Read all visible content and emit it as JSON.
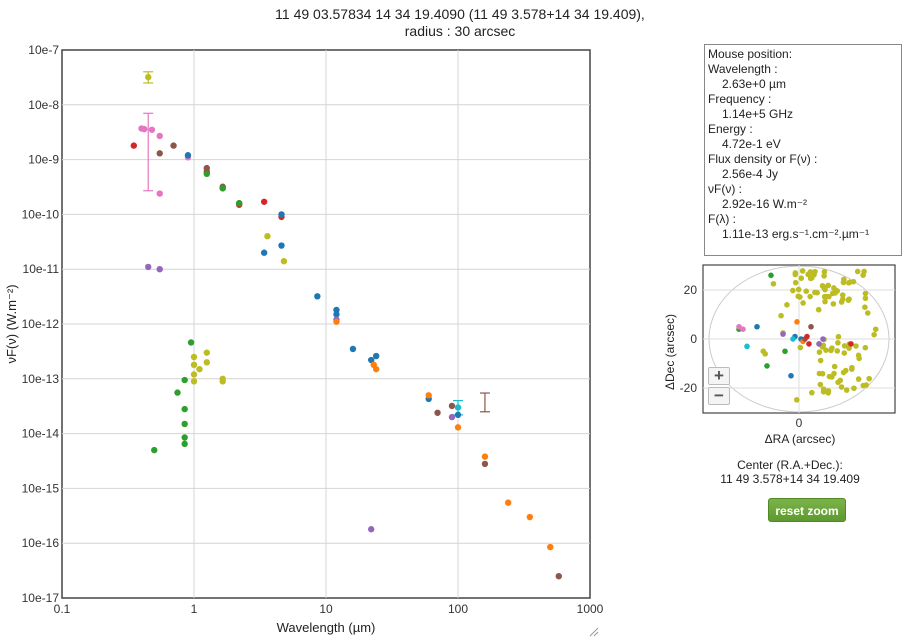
{
  "title": {
    "line1": "11 49 03.57834 14 34 19.4090 (11 49 3.578+14 34 19.409),",
    "line2": "radius : 30 arcsec"
  },
  "chart_data": {
    "type": "scatter",
    "xlabel": "Wavelength (µm)",
    "ylabel": "νF(ν) (W.m⁻²)",
    "xscale": "log",
    "yscale": "log",
    "xlim": [
      0.1,
      1000
    ],
    "ylim": [
      1e-17,
      1e-07
    ],
    "x_ticks": [
      "0.1",
      "1",
      "10",
      "100",
      "1000"
    ],
    "y_ticks": [
      "10e-7",
      "10e-8",
      "10e-9",
      "10e-10",
      "10e-11",
      "10e-12",
      "10e-13",
      "10e-14",
      "10e-15",
      "10e-16",
      "10e-17"
    ],
    "grid": true,
    "series": [
      {
        "color": "#bcbd22",
        "points": [
          [
            0.45,
            3.2e-08
          ],
          [
            3.6,
            4e-11
          ],
          [
            4.8,
            1.4e-11
          ],
          [
            1.0,
            1.2e-13
          ],
          [
            1.0,
            1.8e-13
          ],
          [
            1.0,
            2.5e-13
          ],
          [
            1.0,
            9e-14
          ],
          [
            1.1,
            1.5e-13
          ],
          [
            1.25,
            3e-13
          ],
          [
            1.25,
            2e-13
          ],
          [
            1.65,
            1e-13
          ],
          [
            1.65,
            9e-14
          ]
        ],
        "errors": [
          [
            0.45,
            2.5e-08,
            4e-08
          ]
        ]
      },
      {
        "color": "#e377c2",
        "points": [
          [
            0.4,
            3.7e-09
          ],
          [
            0.42,
            3.6e-09
          ],
          [
            0.48,
            3.5e-09
          ],
          [
            0.55,
            2.4e-10
          ],
          [
            0.55,
            2.7e-09
          ],
          [
            0.9,
            1.1e-09
          ]
        ],
        "errors": [
          [
            0.45,
            2.7e-10,
            7e-09
          ]
        ]
      },
      {
        "color": "#d62728",
        "points": [
          [
            0.35,
            1.8e-09
          ],
          [
            1.25,
            6e-10
          ],
          [
            1.65,
            3e-10
          ],
          [
            2.2,
            1.5e-10
          ],
          [
            3.4,
            1.7e-10
          ],
          [
            4.6,
            9e-11
          ]
        ]
      },
      {
        "color": "#8c564b",
        "points": [
          [
            0.55,
            1.3e-09
          ],
          [
            0.7,
            1.8e-09
          ],
          [
            1.25,
            7e-10
          ],
          [
            1.65,
            3.2e-10
          ],
          [
            2.2,
            1.6e-10
          ],
          [
            70,
            2.4e-14
          ],
          [
            90,
            3.2e-14
          ],
          [
            160,
            2.8e-15
          ],
          [
            580,
            2.5e-17
          ]
        ],
        "errors": [
          [
            160,
            2.5e-14,
            5.5e-14
          ]
        ]
      },
      {
        "color": "#2ca02c",
        "points": [
          [
            1.25,
            5.5e-10
          ],
          [
            1.65,
            3e-10
          ],
          [
            2.2,
            1.6e-10
          ],
          [
            0.5,
            5e-15
          ],
          [
            0.95,
            4.6e-13
          ],
          [
            0.85,
            9.5e-14
          ],
          [
            0.85,
            2.8e-14
          ],
          [
            0.85,
            1.5e-14
          ],
          [
            0.85,
            8.5e-15
          ],
          [
            0.85,
            6.5e-15
          ],
          [
            0.75,
            5.6e-14
          ]
        ]
      },
      {
        "color": "#1f77b4",
        "points": [
          [
            0.9,
            1.2e-09
          ],
          [
            3.4,
            2e-11
          ],
          [
            4.6,
            2.7e-11
          ],
          [
            4.6,
            1e-10
          ],
          [
            8.6,
            3.2e-12
          ],
          [
            12,
            1.8e-12
          ],
          [
            12,
            1.5e-12
          ],
          [
            16,
            3.5e-13
          ],
          [
            22,
            2.2e-13
          ],
          [
            24,
            2.6e-13
          ],
          [
            60,
            4.3e-14
          ],
          [
            100,
            2.2e-14
          ]
        ]
      },
      {
        "color": "#9467bd",
        "points": [
          [
            0.45,
            1.1e-11
          ],
          [
            0.55,
            1e-11
          ],
          [
            12,
            1.2e-12
          ],
          [
            22,
            1.8e-16
          ],
          [
            90,
            2e-14
          ]
        ]
      },
      {
        "color": "#ff7f0e",
        "points": [
          [
            12,
            1.1e-12
          ],
          [
            23,
            1.8e-13
          ],
          [
            24,
            1.5e-13
          ],
          [
            60,
            5e-14
          ],
          [
            100,
            1.3e-14
          ],
          [
            160,
            3.8e-15
          ],
          [
            240,
            5.5e-16
          ],
          [
            350,
            3e-16
          ],
          [
            500,
            8.5e-17
          ]
        ]
      },
      {
        "color": "#17becf",
        "points": [
          [
            100,
            3e-14
          ]
        ],
        "errors": [
          [
            100,
            2.2e-14,
            4e-14
          ]
        ]
      }
    ]
  },
  "mouse_panel": {
    "heading": "Mouse position:",
    "wavelength_label": "Wavelength :",
    "wavelength_value": "2.63e+0 µm",
    "frequency_label": "Frequency :",
    "frequency_value": "1.14e+5 GHz",
    "energy_label": "Energy :",
    "energy_value": "4.72e-1 eV",
    "flux_label": "Flux density or F(ν) :",
    "flux_value": "2.56e-4 Jy",
    "nufnu_label": "νF(ν) :",
    "nufnu_value": "2.92e-16 W.m⁻²",
    "flambda_label": "F(λ) :",
    "flambda_value": "1.11e-13 erg.s⁻¹.cm⁻².µm⁻¹"
  },
  "sky_plot": {
    "xlabel": "ΔRA (arcsec)",
    "ylabel": "ΔDec (arcsec)",
    "x_ticks": [
      "0"
    ],
    "y_ticks": [
      "20",
      "0",
      "-20"
    ],
    "zoom_in_label": "+",
    "zoom_out_label": "−",
    "center_label": "Center (R.A.+Dec.):",
    "center_value": "11 49 3.578+14 34 19.409",
    "reset_label": "reset zoom"
  }
}
